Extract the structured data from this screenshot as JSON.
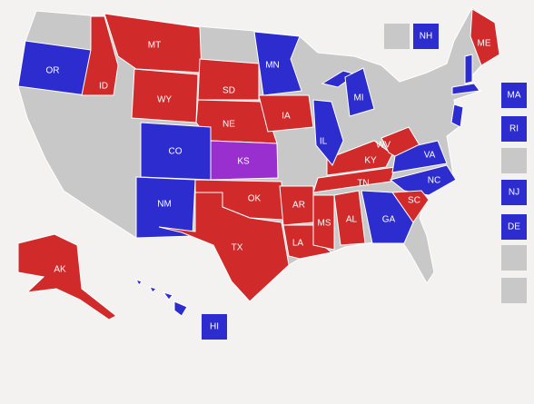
{
  "states": [
    {
      "label": "OR",
      "color": "#2c2ccf"
    },
    {
      "label": "ID",
      "color": "#d12a2a"
    },
    {
      "label": "MT",
      "color": "#d12a2a"
    },
    {
      "label": "WY",
      "color": "#d12a2a"
    },
    {
      "label": "SD",
      "color": "#d12a2a"
    },
    {
      "label": "NE",
      "color": "#d12a2a"
    },
    {
      "label": "MN",
      "color": "#2c2ccf"
    },
    {
      "label": "IA",
      "color": "#d12a2a"
    },
    {
      "label": "CO",
      "color": "#2c2ccf"
    },
    {
      "label": "KS",
      "color": "#9a2fd0"
    },
    {
      "label": "NM",
      "color": "#2c2ccf"
    },
    {
      "label": "OK",
      "color": "#d12a2a"
    },
    {
      "label": "TX",
      "color": "#d12a2a"
    },
    {
      "label": "AR",
      "color": "#d12a2a"
    },
    {
      "label": "LA",
      "color": "#d12a2a"
    },
    {
      "label": "MS",
      "color": "#d12a2a"
    },
    {
      "label": "AL",
      "color": "#d12a2a"
    },
    {
      "label": "TN",
      "color": "#d12a2a"
    },
    {
      "label": "KY",
      "color": "#d12a2a"
    },
    {
      "label": "IL",
      "color": "#2c2ccf"
    },
    {
      "label": "MI",
      "color": "#2c2ccf"
    },
    {
      "label": "WV",
      "color": "#d12a2a"
    },
    {
      "label": "VA",
      "color": "#2c2ccf"
    },
    {
      "label": "NC",
      "color": "#2c2ccf"
    },
    {
      "label": "SC",
      "color": "#d12a2a"
    },
    {
      "label": "GA",
      "color": "#2c2ccf"
    },
    {
      "label": "ME",
      "color": "#d12a2a"
    },
    {
      "label": "AK",
      "color": "#d12a2a"
    }
  ],
  "boxes": [
    {
      "color": "#c8c8c8"
    },
    {
      "label": "NH",
      "color": "#2c2ccf"
    },
    {
      "label": "MA",
      "color": "#2c2ccf"
    },
    {
      "label": "RI",
      "color": "#2c2ccf"
    },
    {
      "color": "#c8c8c8"
    },
    {
      "label": "NJ",
      "color": "#2c2ccf"
    },
    {
      "label": "DE",
      "color": "#2c2ccf"
    },
    {
      "color": "#c8c8c8"
    },
    {
      "color": "#c8c8c8"
    },
    {
      "label": "HI",
      "color": "#2c2ccf"
    }
  ]
}
